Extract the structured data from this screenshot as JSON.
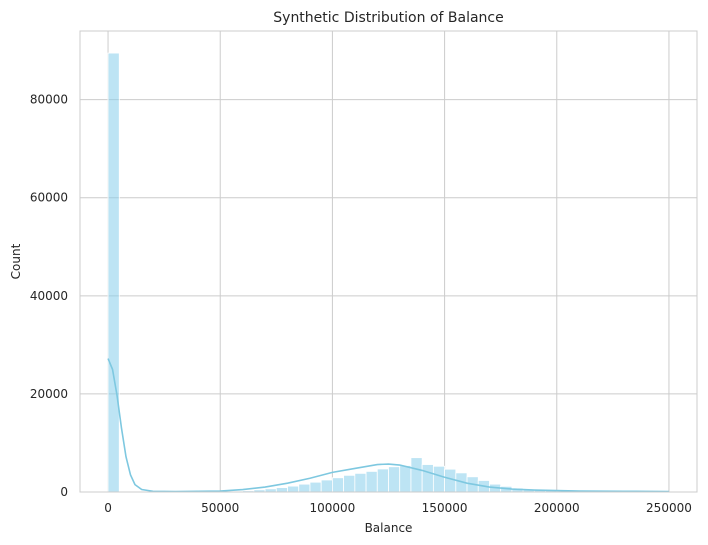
{
  "chart_data": {
    "type": "bar",
    "title": "Synthetic Distribution of Balance",
    "xlabel": "Balance",
    "ylabel": "Count",
    "xlim": [
      -12500,
      262500
    ],
    "ylim": [
      0,
      94000
    ],
    "xticks": [
      0,
      50000,
      100000,
      150000,
      200000,
      250000
    ],
    "xtick_labels": [
      "0",
      "50000",
      "100000",
      "150000",
      "200000",
      "250000"
    ],
    "yticks": [
      0,
      20000,
      40000,
      60000,
      80000
    ],
    "ytick_labels": [
      "0",
      "20000",
      "40000",
      "60000",
      "80000"
    ],
    "grid": true,
    "bar_color": "#87ceeb",
    "kde_color": "#7ec8e0",
    "bins": {
      "start": 0,
      "width": 5000,
      "values": [
        89500,
        0,
        0,
        0,
        0,
        0,
        0,
        0,
        0,
        0,
        50,
        150,
        250,
        450,
        650,
        900,
        1200,
        1600,
        2000,
        2450,
        2900,
        3400,
        3800,
        4200,
        4700,
        5150,
        5400,
        7000,
        5600,
        5250,
        4650,
        3900,
        3100,
        2350,
        1600,
        1150,
        800,
        550,
        400,
        300,
        200,
        150,
        100,
        80,
        60,
        50,
        40,
        30,
        30,
        30
      ]
    },
    "kde": {
      "x": [
        0,
        2000,
        4000,
        6000,
        8000,
        10000,
        12000,
        15000,
        20000,
        30000,
        50000,
        60000,
        70000,
        80000,
        90000,
        100000,
        110000,
        120000,
        125000,
        130000,
        140000,
        150000,
        160000,
        170000,
        180000,
        190000,
        200000,
        210000,
        220000,
        230000,
        250000
      ],
      "y": [
        27200,
        25000,
        19700,
        13000,
        7200,
        3500,
        1500,
        500,
        150,
        100,
        200,
        500,
        1000,
        1800,
        2800,
        4000,
        4800,
        5600,
        5700,
        5500,
        4400,
        3000,
        1800,
        1000,
        600,
        400,
        300,
        200,
        180,
        150,
        100
      ]
    }
  }
}
